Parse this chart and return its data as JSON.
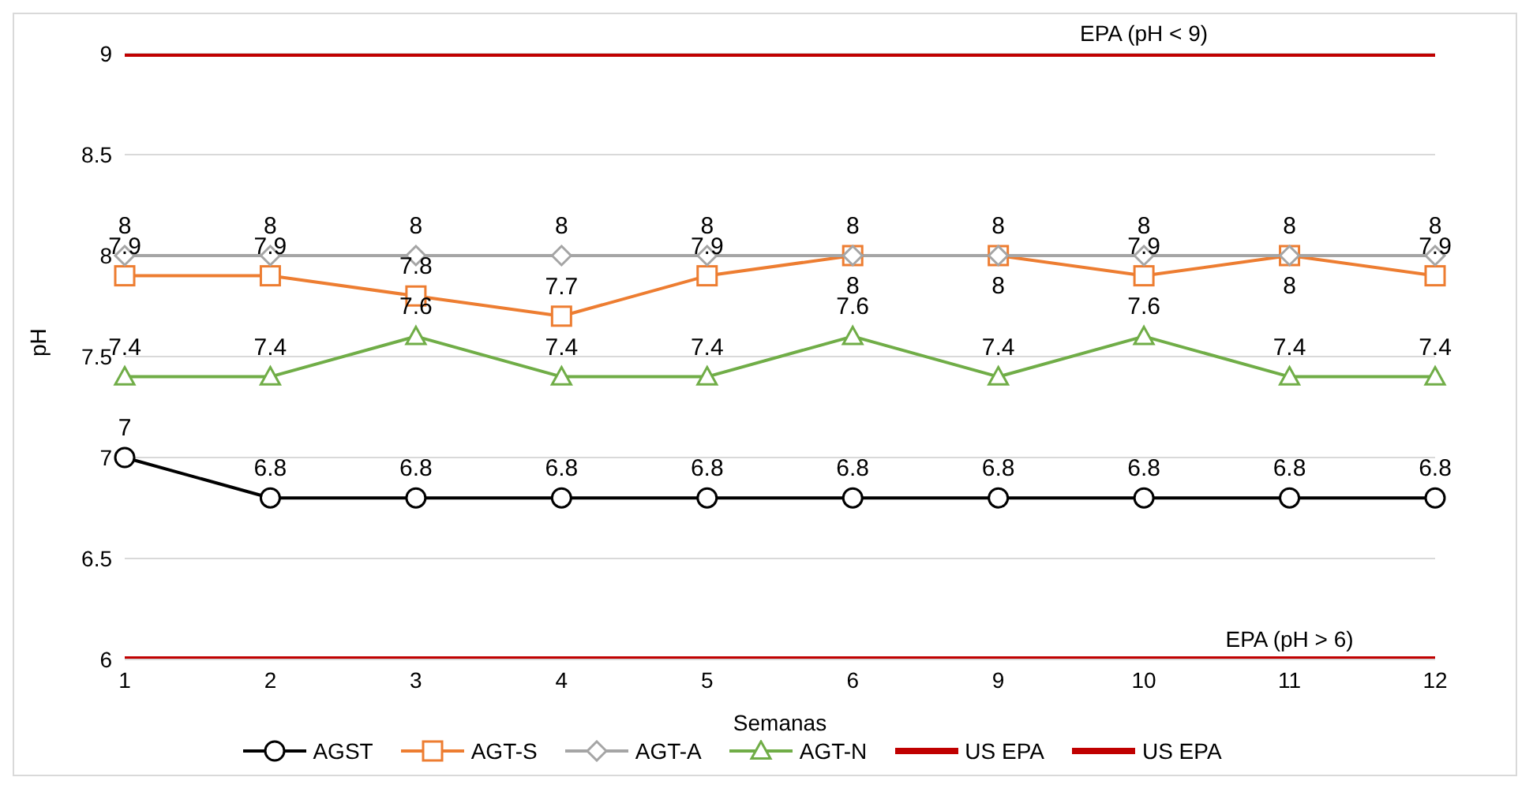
{
  "chart_data": {
    "type": "line",
    "xlabel": "Semanas",
    "ylabel": "pH",
    "categories": [
      "1",
      "2",
      "3",
      "4",
      "5",
      "6",
      "9",
      "10",
      "11",
      "12"
    ],
    "ylim": [
      6,
      9
    ],
    "yticks": [
      6,
      6.5,
      7,
      7.5,
      8,
      8.5,
      9
    ],
    "grid": "y",
    "legend": "bottom",
    "series": [
      {
        "name": "AGST",
        "color": "#000000",
        "marker": "circle",
        "values": [
          7,
          6.8,
          6.8,
          6.8,
          6.8,
          6.8,
          6.8,
          6.8,
          6.8,
          6.8
        ],
        "value_labels": [
          "7",
          "6.8",
          "6.8",
          "6.8",
          "6.8",
          "6.8",
          "6.8",
          "6.8",
          "6.8",
          "6.8"
        ]
      },
      {
        "name": "AGT-S",
        "color": "#ed7d31",
        "marker": "square",
        "values": [
          7.9,
          7.9,
          7.8,
          7.7,
          7.9,
          8,
          8,
          7.9,
          8,
          7.9
        ],
        "value_labels": [
          "7.9",
          "7.9",
          "7.8",
          "7.7",
          "7.9",
          "8",
          "8",
          "7.9",
          "8",
          "7.9"
        ]
      },
      {
        "name": "AGT-A",
        "color": "#a5a5a5",
        "marker": "diamond",
        "values": [
          8,
          8,
          8,
          8,
          8,
          8,
          8,
          8,
          8,
          8
        ],
        "value_labels": [
          "8",
          "8",
          "8",
          "8",
          "8",
          "8",
          "8",
          "8",
          "8",
          "8"
        ]
      },
      {
        "name": "AGT-N",
        "color": "#70ad47",
        "marker": "triangle",
        "values": [
          7.4,
          7.4,
          7.6,
          7.4,
          7.4,
          7.6,
          7.4,
          7.6,
          7.4,
          7.4
        ],
        "value_labels": [
          "7.4",
          "7.4",
          "7.6",
          "7.4",
          "7.4",
          "7.6",
          "7.4",
          "7.6",
          "7.4",
          "7.4"
        ]
      },
      {
        "name": "US EPA",
        "color": "#c00000",
        "marker": "none",
        "values": [
          9,
          9,
          9,
          9,
          9,
          9,
          9,
          9,
          9,
          9
        ]
      },
      {
        "name": "US EPA",
        "color": "#c00000",
        "marker": "none",
        "values": [
          6,
          6,
          6,
          6,
          6,
          6,
          6,
          6,
          6,
          6
        ]
      }
    ],
    "annotations": [
      {
        "text": "EPA (pH < 9)",
        "x": "10",
        "y": 9
      },
      {
        "text": "EPA (pH > 6)",
        "x": "11",
        "y": 6
      }
    ]
  }
}
